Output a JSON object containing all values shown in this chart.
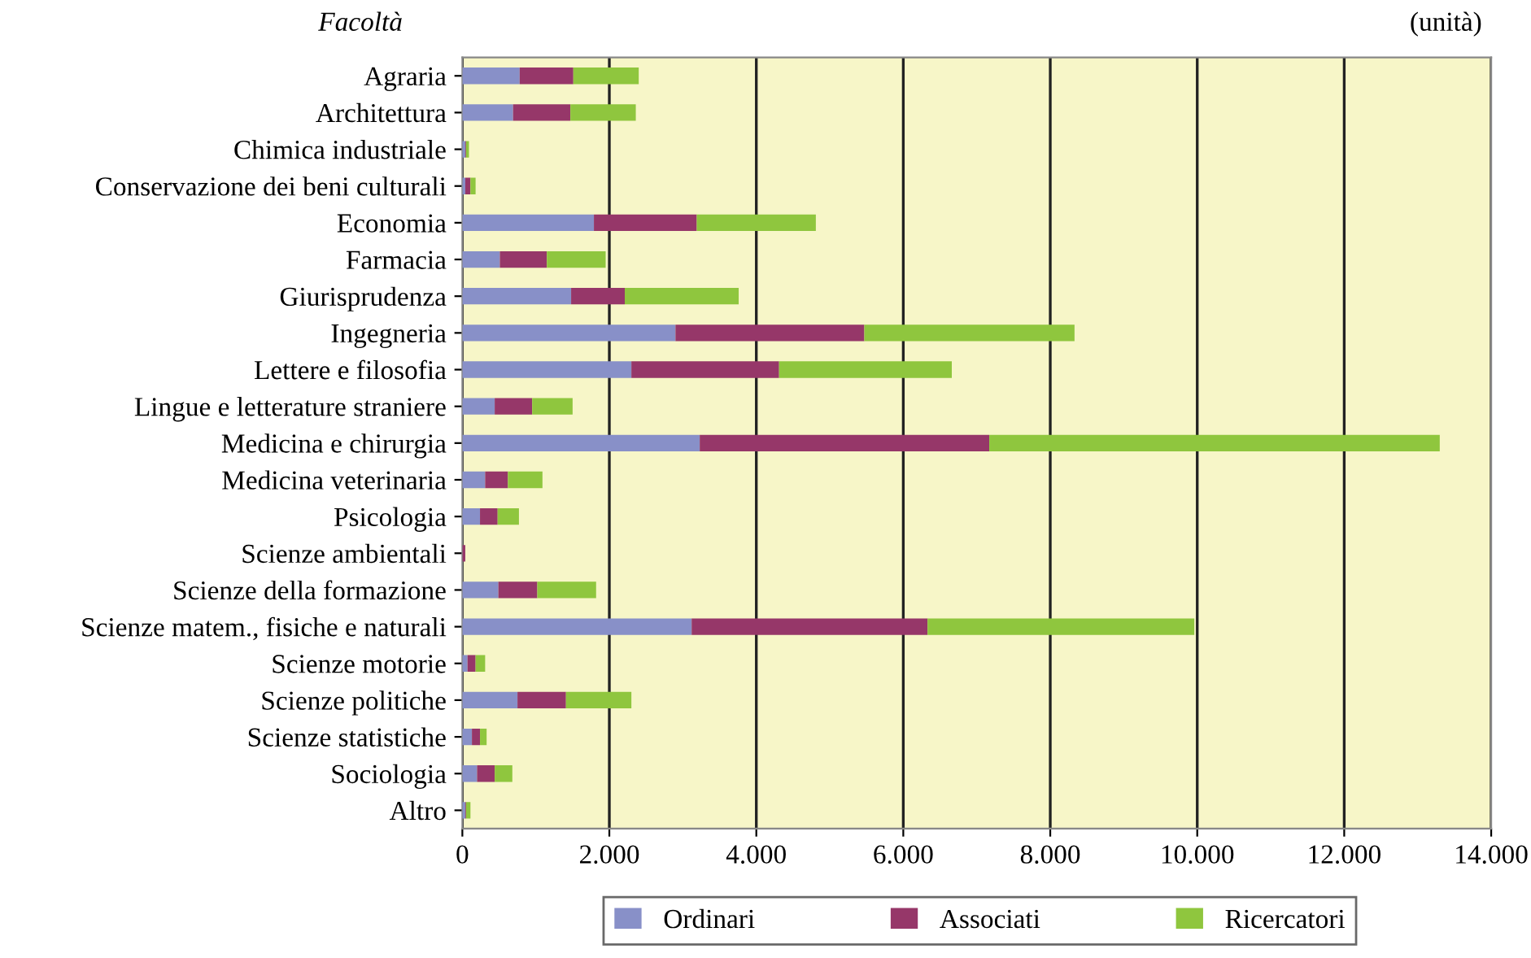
{
  "chart_data": {
    "type": "bar",
    "orientation": "horizontal",
    "stacked": true,
    "ylabel": "Facoltà",
    "annotations": [
      "(unità)"
    ],
    "categories": [
      "Agraria",
      "Architettura",
      "Chimica industriale",
      "Conservazione dei beni culturali",
      "Economia",
      "Farmacia",
      "Giurisprudenza",
      "Ingegneria",
      "Lettere e filosofia",
      "Lingue e letterature straniere",
      "Medicina e chirurgia",
      "Medicina veterinaria",
      "Psicologia",
      "Scienze ambientali",
      "Scienze della formazione",
      "Scienze matem., fisiche e naturali",
      "Scienze motorie",
      "Scienze politiche",
      "Scienze statistiche",
      "Sociologia",
      "Altro"
    ],
    "series": [
      {
        "name": "Ordinari",
        "color": "#8890c8",
        "values": [
          780,
          690,
          40,
          40,
          1790,
          510,
          1480,
          2900,
          2300,
          440,
          3230,
          310,
          240,
          null,
          490,
          3120,
          70,
          750,
          130,
          200,
          40
        ]
      },
      {
        "name": "Associati",
        "color": "#963769",
        "values": [
          730,
          780,
          10,
          70,
          1400,
          640,
          730,
          2570,
          2010,
          510,
          3940,
          310,
          240,
          40,
          530,
          3210,
          110,
          660,
          110,
          240,
          10
        ]
      },
      {
        "name": "Ricercatori",
        "color": "#8fc63e",
        "values": [
          890,
          890,
          40,
          70,
          1620,
          800,
          1550,
          2860,
          2350,
          550,
          6130,
          470,
          290,
          null,
          800,
          3630,
          130,
          890,
          90,
          240,
          60
        ]
      }
    ],
    "xlim": [
      0,
      14000
    ],
    "xticks": [
      0,
      {
        "value": 2000,
        "label": "2.000"
      },
      {
        "value": 4000,
        "label": "4.000"
      },
      {
        "value": 6000,
        "label": "6.000"
      },
      {
        "value": 8000,
        "label": "8.000"
      },
      {
        "value": 10000,
        "label": "10.000"
      },
      {
        "value": 12000,
        "label": "12.000"
      },
      {
        "value": 14000,
        "label": "14.000"
      }
    ],
    "grid": "x",
    "legend": "bottom"
  }
}
